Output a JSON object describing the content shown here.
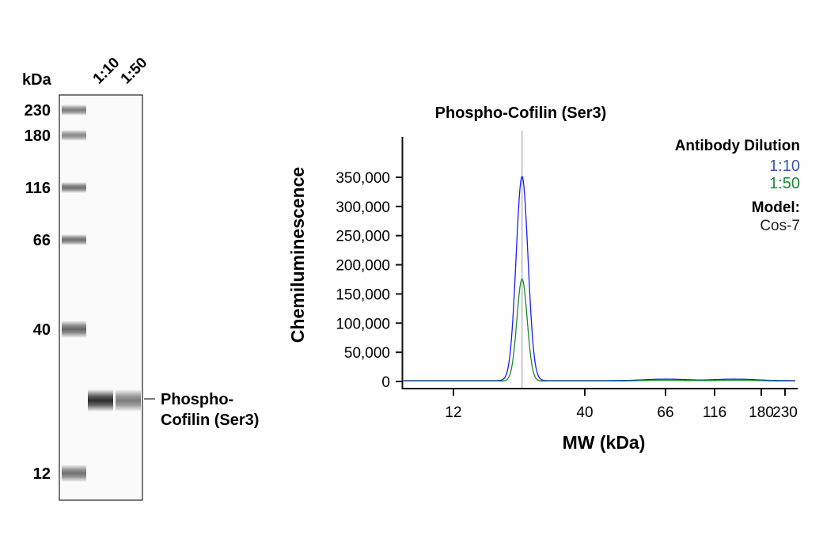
{
  "chart_data": [
    {
      "type": "gel",
      "unit_label": "kDa",
      "lane_labels": [
        "1:10",
        "1:50"
      ],
      "ladder": [
        {
          "label": "230",
          "kda": 230,
          "intensity": 0.55
        },
        {
          "label": "180",
          "kda": 180,
          "intensity": 0.5
        },
        {
          "label": "116",
          "kda": 116,
          "intensity": 0.6
        },
        {
          "label": "66",
          "kda": 66,
          "intensity": 0.6
        },
        {
          "label": "40",
          "kda": 40,
          "intensity": 0.65
        },
        {
          "label": "12",
          "kda": 12,
          "intensity": 0.6
        }
      ],
      "sample_bands": [
        {
          "lane": "1:10",
          "intensity": 0.9
        },
        {
          "lane": "1:50",
          "intensity": 0.55
        }
      ],
      "band_label_line1": "Phospho-",
      "band_label_line2": "Cofilin (Ser3)"
    },
    {
      "type": "line",
      "title": "Phospho-Cofilin (Ser3)",
      "xlabel": "MW (kDa)",
      "ylabel": "Chemiluminescence",
      "x_scale": "custom-log",
      "x_ticks": [
        12,
        40,
        66,
        116,
        180,
        230
      ],
      "x_tick_labels": [
        "12",
        "40",
        "66",
        "116",
        "180",
        "230"
      ],
      "ylim": [
        0,
        350000
      ],
      "y_ticks": [
        0,
        50000,
        100000,
        150000,
        200000,
        250000,
        300000,
        350000
      ],
      "y_tick_labels": [
        "0",
        "50,000",
        "100,000",
        "150,000",
        "200,000",
        "250,000",
        "300,000",
        "350,000"
      ],
      "marker_line_kda": 22.5,
      "legend_title": "Antibody Dilution",
      "model_label": "Model:",
      "model_value": "Cos-7",
      "series": [
        {
          "name": "1:10",
          "color": "#1a1aff",
          "legend_color": "#3a57a8",
          "peak_kda": 22.5,
          "peak_value": 350000,
          "baseline": 1500,
          "bumps": [
            [
              66,
              2500
            ],
            [
              140,
              2500
            ]
          ]
        },
        {
          "name": "1:50",
          "color": "#1a8a2a",
          "legend_color": "#1a8a3a",
          "peak_kda": 22.5,
          "peak_value": 175000,
          "baseline": 800,
          "bumps": [
            [
              66,
              1500
            ],
            [
              140,
              1500
            ]
          ]
        }
      ]
    }
  ]
}
